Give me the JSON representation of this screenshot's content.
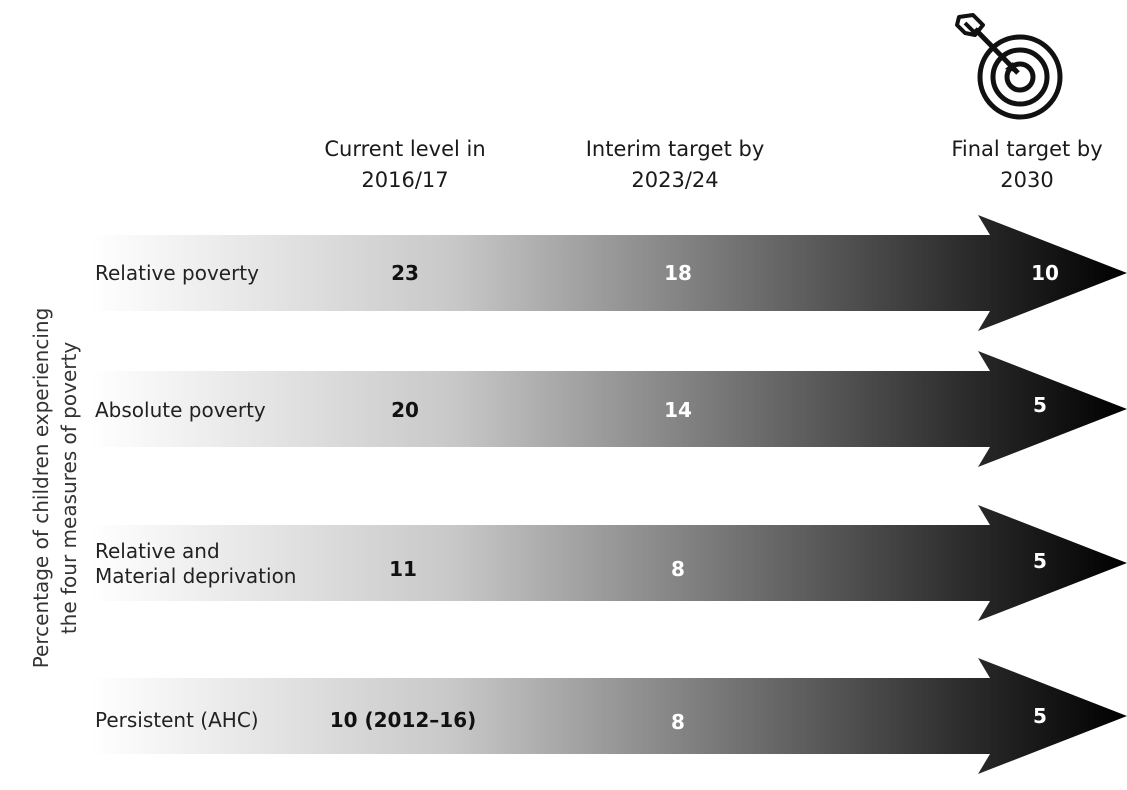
{
  "headers": {
    "current": [
      "Current level in",
      "2016/17"
    ],
    "interim": [
      "Interim target by",
      "2023/24"
    ],
    "final": [
      "Final target by",
      "2030"
    ]
  },
  "side_label": [
    "Percentage of children experiencing",
    "the four measures of poverty"
  ],
  "rows": [
    {
      "label": [
        "Relative poverty"
      ],
      "current": "23",
      "interim": "18",
      "final": "10"
    },
    {
      "label": [
        "Absolute poverty"
      ],
      "current": "20",
      "interim": "14",
      "final": "5"
    },
    {
      "label": [
        "Relative and",
        "Material deprivation"
      ],
      "current": "11",
      "interim": "8",
      "final": "5"
    },
    {
      "label": [
        "Persistent (AHC)"
      ],
      "current": "10 (2012–16)",
      "interim": "8",
      "final": "5"
    }
  ],
  "icons": {
    "target": "target-with-arrow-icon"
  },
  "colors": {
    "gradient_start": "#ffffff",
    "gradient_end": "#000000"
  }
}
